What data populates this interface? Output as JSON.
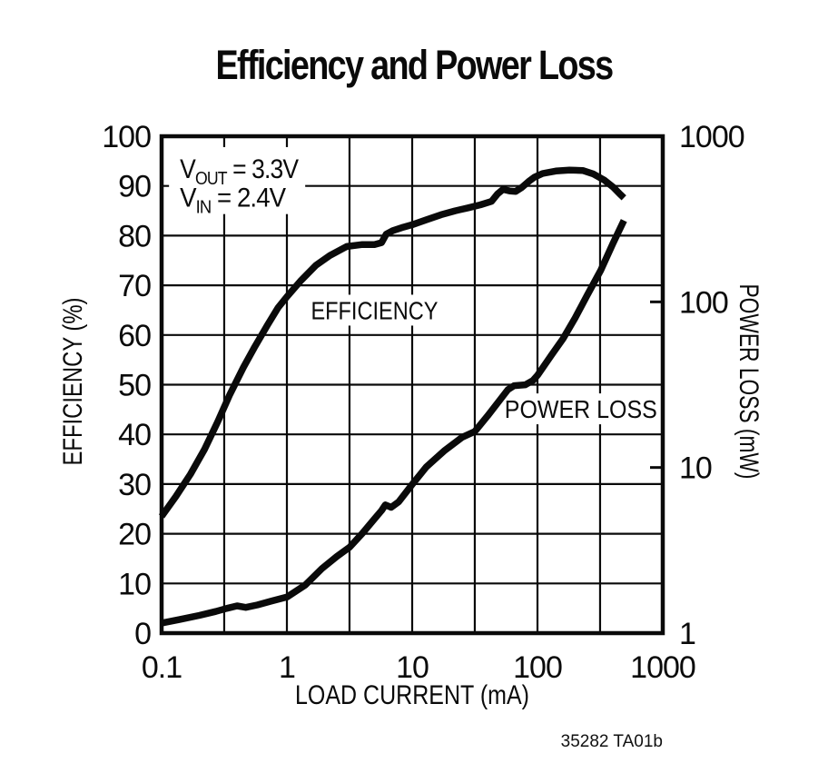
{
  "page": {
    "title": "Efficiency and Power Loss",
    "footer": "35282 TA01b"
  },
  "chart_data": {
    "type": "line",
    "title": "Efficiency and Power Loss",
    "x_axis": {
      "label": "LOAD CURRENT (mA)",
      "scale": "log",
      "min": 0.1,
      "max": 1000,
      "ticks": [
        0.1,
        1,
        10,
        100,
        1000
      ],
      "tick_labels": [
        "0.1",
        "1",
        "10",
        "100",
        "1000"
      ],
      "minor_gridlines": [
        0.316,
        3.16,
        31.6,
        316
      ]
    },
    "y_axis_left": {
      "label": "EFFICIENCY (%)",
      "scale": "linear",
      "min": 0,
      "max": 100,
      "tick_step": 10,
      "ticks": [
        100,
        90,
        80,
        70,
        60,
        50,
        40,
        30,
        20,
        10,
        0
      ]
    },
    "y_axis_right": {
      "label": "POWER LOSS (mW)",
      "scale": "log",
      "min": 1,
      "max": 1000,
      "ticks": [
        1000,
        100,
        10,
        1
      ],
      "tick_marks": [
        100,
        10
      ]
    },
    "annotation": {
      "x_ma": 0.14,
      "lines": [
        {
          "base": "V",
          "sub": "OUT",
          "rest": "= 3.3V",
          "y_pct": 91.6
        },
        {
          "base": "V",
          "sub": "IN",
          "rest": "= 2.4V",
          "y_pct": 85.8
        }
      ]
    },
    "grid": true,
    "legend_position": "inline-curve-labels",
    "series": [
      {
        "name": "EFFICIENCY",
        "axis": "left",
        "units": "%",
        "label_pos": {
          "x_ma": 5,
          "y_pct": 65
        },
        "points": [
          [
            0.1,
            23.5
          ],
          [
            0.13,
            27.5
          ],
          [
            0.17,
            32
          ],
          [
            0.22,
            37
          ],
          [
            0.28,
            42.5
          ],
          [
            0.35,
            48
          ],
          [
            0.45,
            53.5
          ],
          [
            0.55,
            57.5
          ],
          [
            0.7,
            62
          ],
          [
            0.85,
            65.5
          ],
          [
            1.0,
            67.7
          ],
          [
            1.3,
            71
          ],
          [
            1.7,
            74
          ],
          [
            2.2,
            76
          ],
          [
            3.0,
            77.8
          ],
          [
            4.0,
            78.2
          ],
          [
            5.0,
            78.2
          ],
          [
            5.7,
            78.6
          ],
          [
            6.2,
            80.3
          ],
          [
            7.0,
            81.0
          ],
          [
            8.5,
            81.7
          ],
          [
            10,
            82.2
          ],
          [
            13,
            83.2
          ],
          [
            17,
            84.2
          ],
          [
            22,
            85.0
          ],
          [
            28,
            85.6
          ],
          [
            35,
            86.2
          ],
          [
            43,
            86.9
          ],
          [
            48,
            88.4
          ],
          [
            53,
            89.3
          ],
          [
            60,
            89.0
          ],
          [
            67,
            88.9
          ],
          [
            75,
            89.7
          ],
          [
            85,
            90.9
          ],
          [
            95,
            91.8
          ],
          [
            110,
            92.5
          ],
          [
            140,
            93.0
          ],
          [
            180,
            93.2
          ],
          [
            230,
            93.1
          ],
          [
            280,
            92.4
          ],
          [
            340,
            91.2
          ],
          [
            400,
            89.8
          ],
          [
            450,
            88.5
          ],
          [
            490,
            87.6
          ]
        ]
      },
      {
        "name": "POWER LOSS",
        "axis": "right",
        "units": "mW",
        "label_pos": {
          "x_ma": 222,
          "y_mw": 22.6
        },
        "points": [
          [
            0.1,
            1.15
          ],
          [
            0.14,
            1.21
          ],
          [
            0.2,
            1.28
          ],
          [
            0.27,
            1.35
          ],
          [
            0.33,
            1.41
          ],
          [
            0.4,
            1.46
          ],
          [
            0.47,
            1.43
          ],
          [
            0.58,
            1.48
          ],
          [
            0.75,
            1.56
          ],
          [
            1.0,
            1.65
          ],
          [
            1.4,
            1.95
          ],
          [
            1.9,
            2.45
          ],
          [
            2.5,
            2.9
          ],
          [
            3.16,
            3.3
          ],
          [
            4.0,
            4.0
          ],
          [
            5.0,
            4.9
          ],
          [
            5.7,
            5.5
          ],
          [
            6.1,
            5.95
          ],
          [
            6.8,
            5.75
          ],
          [
            7.8,
            6.2
          ],
          [
            10,
            7.9
          ],
          [
            13,
            10.1
          ],
          [
            18,
            12.6
          ],
          [
            25,
            15.2
          ],
          [
            31.6,
            16.5
          ],
          [
            40,
            20.5
          ],
          [
            50,
            25.5
          ],
          [
            58,
            29.5
          ],
          [
            65,
            31.2
          ],
          [
            80,
            31.6
          ],
          [
            92,
            33.5
          ],
          [
            100,
            36
          ],
          [
            130,
            48
          ],
          [
            160,
            60
          ],
          [
            200,
            80
          ],
          [
            250,
            110
          ],
          [
            320,
            155
          ],
          [
            400,
            225
          ],
          [
            490,
            310
          ]
        ]
      }
    ]
  }
}
